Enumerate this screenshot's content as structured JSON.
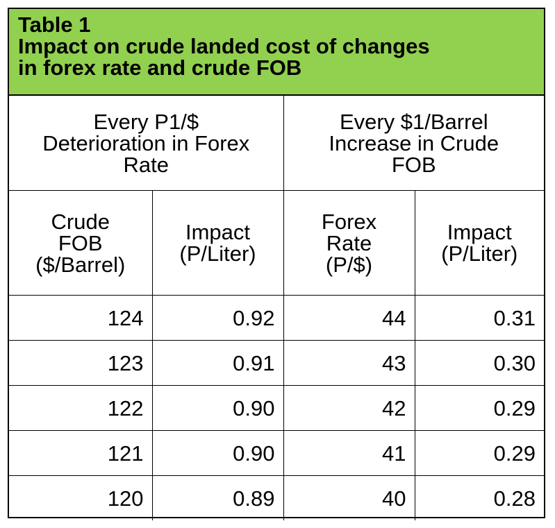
{
  "title": {
    "line1": "Table 1",
    "line2": "Impact on crude landed cost of changes",
    "line3": "in forex rate and crude FOB"
  },
  "colors": {
    "title_background": "#92d050",
    "border": "#000000"
  },
  "groups": [
    {
      "lines": [
        "Every P1/$",
        "Deterioration in Forex",
        "Rate"
      ]
    },
    {
      "lines": [
        "Every $1/Barrel",
        "Increase in Crude",
        "FOB"
      ]
    }
  ],
  "columns": [
    {
      "lines": [
        "Crude",
        "FOB",
        "($/Barrel)"
      ]
    },
    {
      "lines": [
        "Impact",
        "(P/Liter)"
      ]
    },
    {
      "lines": [
        "Forex",
        "Rate",
        "(P/$)"
      ]
    },
    {
      "lines": [
        "Impact",
        "(P/Liter)"
      ]
    }
  ],
  "rows": [
    [
      "124",
      "0.92",
      "44",
      "0.31"
    ],
    [
      "123",
      "0.91",
      "43",
      "0.30"
    ],
    [
      "122",
      "0.90",
      "42",
      "0.29"
    ],
    [
      "121",
      "0.90",
      "41",
      "0.29"
    ],
    [
      "120",
      "0.89",
      "40",
      "0.28"
    ]
  ]
}
